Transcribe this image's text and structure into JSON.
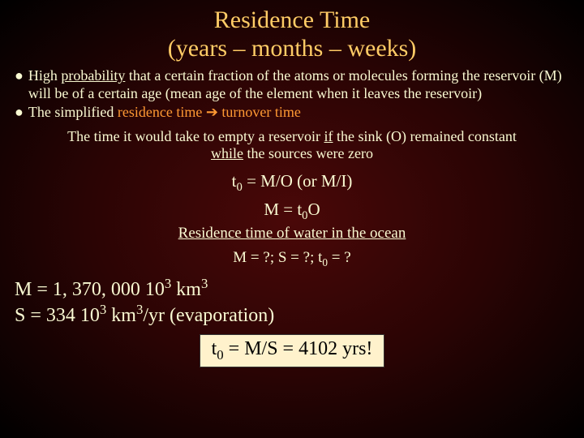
{
  "colors": {
    "title": "#ffcc66",
    "body": "#fafad2",
    "highlight": "#ff9933",
    "box_bg": "#fff2cc",
    "box_text": "#000000"
  },
  "title": {
    "line1": "Residence Time",
    "line2": "(years – months – weeks)"
  },
  "bullet1": {
    "pre": "High ",
    "u": "probability",
    "post": " that a certain fraction of the atoms or molecules forming the reservoir (M) will be of a certain age (mean age of the element when it leaves the reservoir)"
  },
  "bullet2": {
    "pre": "The simplified ",
    "h1": "residence time",
    "arrow": " ➔ ",
    "h2": "turnover time"
  },
  "cont": {
    "p1": "The time it would take to empty a reservoir ",
    "u1": "if",
    "p2": " the sink (O) remained constant ",
    "u2": "while",
    "p3": " the sources were zero"
  },
  "eq1": {
    "tau": "t",
    "sub": "0",
    "rest": " = M/O (or M/I)"
  },
  "eq2": {
    "pre": "M = ",
    "tau": "t",
    "sub": "0",
    "post": "O"
  },
  "subtitle": "Residence time of water in the ocean",
  "eq3": {
    "p1": "M = ?; S = ?;  ",
    "tau": "t",
    "sub": "0",
    "p2": " = ?"
  },
  "result1": {
    "pre": "M = 1, 370, 000 10",
    "sup1": "3",
    "mid": " km",
    "sup2": "3"
  },
  "result2": {
    "pre": "S = 334 10",
    "sup1": "3",
    "mid": " km",
    "sup2": "3",
    "post": "/yr (evaporation)"
  },
  "box": {
    "tau": "t",
    "sub": "0",
    "rest": " = M/S = 4102 yrs!"
  }
}
